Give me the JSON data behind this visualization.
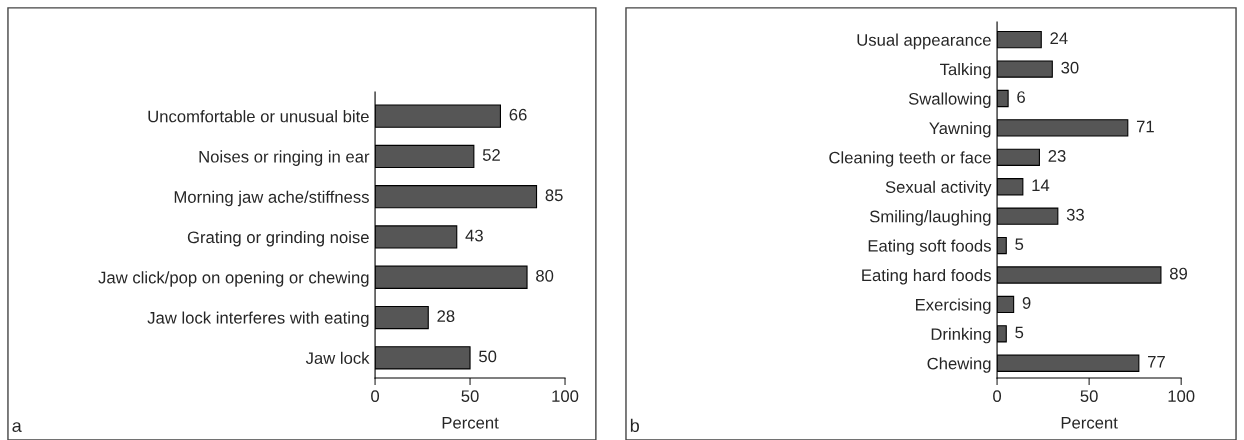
{
  "chart_data": [
    {
      "type": "bar",
      "orientation": "horizontal",
      "xlabel": "Percent",
      "categories": [
        "Uncomfortable or unusual bite",
        "Noises or ringing in ear",
        "Morning jaw ache/stiffness",
        "Grating or grinding noise",
        "Jaw click/pop on opening or chewing",
        "Jaw lock interferes with eating",
        "Jaw lock"
      ],
      "values": [
        66,
        52,
        85,
        43,
        80,
        28,
        50
      ],
      "color": "#565656",
      "xlim": [
        0,
        100
      ],
      "xticks": [
        0,
        50,
        100
      ],
      "data_labels": true,
      "grid": false,
      "legend": false,
      "annotations": [
        "a"
      ]
    },
    {
      "type": "bar",
      "orientation": "horizontal",
      "xlabel": "Percent",
      "categories": [
        "Usual appearance",
        "Talking",
        "Swallowing",
        "Yawning",
        "Cleaning teeth or face",
        "Sexual activity",
        "Smiling/laughing",
        "Eating soft foods",
        "Eating hard foods",
        "Exercising",
        "Drinking",
        "Chewing"
      ],
      "values": [
        24,
        30,
        6,
        71,
        23,
        14,
        33,
        5,
        89,
        9,
        5,
        77
      ],
      "color": "#565656",
      "xlim": [
        0,
        100
      ],
      "xticks": [
        0,
        50,
        100
      ],
      "data_labels": true,
      "grid": false,
      "legend": false,
      "annotations": [
        "b"
      ]
    }
  ]
}
